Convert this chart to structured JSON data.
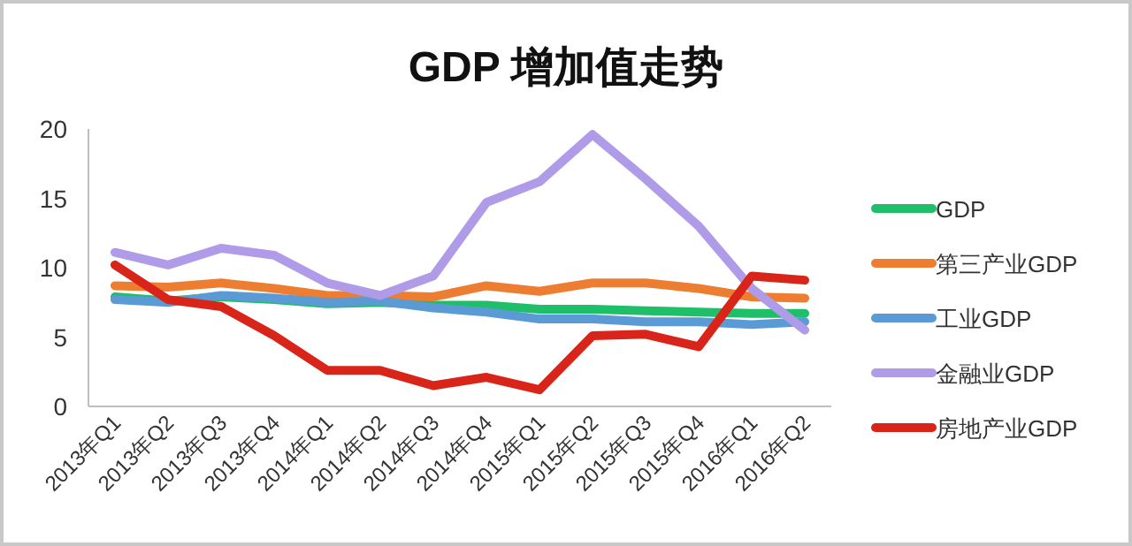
{
  "chart_data": {
    "type": "line",
    "title": "GDP 增加值走势",
    "categories": [
      "2013年Q1",
      "2013年Q2",
      "2013年Q3",
      "2013年Q4",
      "2014年Q1",
      "2014年Q2",
      "2014年Q3",
      "2014年Q4",
      "2015年Q1",
      "2015年Q2",
      "2015年Q3",
      "2015年Q4",
      "2016年Q1",
      "2016年Q2"
    ],
    "series": [
      {
        "name": "GDP",
        "color": "#1fbf6a",
        "values": [
          7.9,
          7.6,
          7.9,
          7.7,
          7.4,
          7.5,
          7.3,
          7.3,
          7.0,
          7.0,
          6.9,
          6.8,
          6.7,
          6.7
        ]
      },
      {
        "name": "第三产业GDP",
        "color": "#ed7d31",
        "values": [
          8.7,
          8.6,
          8.9,
          8.5,
          8.0,
          8.0,
          7.9,
          8.7,
          8.3,
          8.9,
          8.9,
          8.5,
          7.9,
          7.8
        ]
      },
      {
        "name": "工业GDP",
        "color": "#5b9bd5",
        "values": [
          7.7,
          7.5,
          8.0,
          7.8,
          7.5,
          7.6,
          7.1,
          6.8,
          6.3,
          6.3,
          6.1,
          6.1,
          5.9,
          6.1
        ]
      },
      {
        "name": "金融业GDP",
        "color": "#b09be8",
        "values": [
          11.1,
          10.2,
          11.4,
          10.9,
          8.9,
          8.0,
          9.4,
          14.7,
          16.2,
          19.6,
          16.4,
          13.0,
          8.5,
          5.5
        ]
      },
      {
        "name": "房地产业GDP",
        "color": "#d9241a",
        "values": [
          10.2,
          7.7,
          7.2,
          5.1,
          2.6,
          2.6,
          1.5,
          2.1,
          1.2,
          5.1,
          5.2,
          4.3,
          9.4,
          9.1
        ]
      }
    ],
    "ylim": [
      0,
      20
    ],
    "yticks": [
      0,
      5,
      10,
      15,
      20
    ],
    "grid": false,
    "legend": "right",
    "line_style": "solid",
    "marker": "none"
  }
}
